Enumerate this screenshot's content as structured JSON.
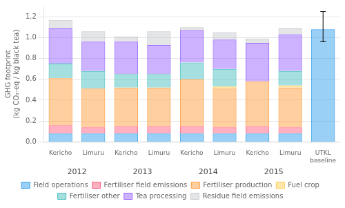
{
  "chart_data": {
    "type": "bar",
    "stacked": true,
    "categories": [
      "Kericho",
      "Limuru",
      "Kericho",
      "Limuru",
      "Kericho",
      "Limuru",
      "Kericho",
      "Limuru",
      "UTKL\nbaseline"
    ],
    "annotations": [
      "2012",
      "2013",
      "2014",
      "2015"
    ],
    "ylabel": "GHG footprint\n(kg CO₂-eq / kg black tea)",
    "series": [
      {
        "name": "Field operations",
        "values": [
          0.08,
          0.08,
          0.08,
          0.08,
          0.08,
          0.08,
          0.08,
          0.08,
          null
        ]
      },
      {
        "name": "Fertiliser field emissions",
        "values": [
          0.08,
          0.06,
          0.07,
          0.07,
          0.07,
          0.06,
          0.07,
          0.06,
          null
        ]
      },
      {
        "name": "Fertiliser production",
        "values": [
          0.45,
          0.37,
          0.37,
          0.37,
          0.45,
          0.37,
          0.43,
          0.38,
          null
        ]
      },
      {
        "name": "Fuel crop",
        "values": [
          0.0,
          0.0,
          0.0,
          0.0,
          0.0,
          0.02,
          0.0,
          0.02,
          null
        ]
      },
      {
        "name": "Fertiliser other",
        "values": [
          0.14,
          0.17,
          0.13,
          0.13,
          0.16,
          0.17,
          0.0,
          0.14,
          null
        ]
      },
      {
        "name": "Tea processing",
        "values": [
          0.34,
          0.28,
          0.31,
          0.28,
          0.31,
          0.28,
          0.37,
          0.35,
          null
        ]
      },
      {
        "name": "Residue field emissions",
        "values": [
          0.08,
          0.1,
          0.05,
          0.13,
          0.03,
          0.07,
          0.04,
          0.06,
          null
        ]
      },
      {
        "values": [
          null,
          null,
          null,
          null,
          null,
          null,
          null,
          null,
          1.08
        ],
        "error_low": [
          null,
          null,
          null,
          null,
          null,
          null,
          null,
          null,
          0.12
        ],
        "error_high": [
          null,
          null,
          null,
          null,
          null,
          null,
          null,
          null,
          0.17
        ]
      }
    ],
    "ylim": [
      0,
      1.3
    ],
    "yticks": [
      {
        "value": 0,
        "label": "0.0"
      },
      0.2,
      0.4,
      0.6,
      0.8,
      {
        "value": 1,
        "label": "1.0"
      },
      1.2
    ],
    "grid": true,
    "legend": "bottom"
  }
}
